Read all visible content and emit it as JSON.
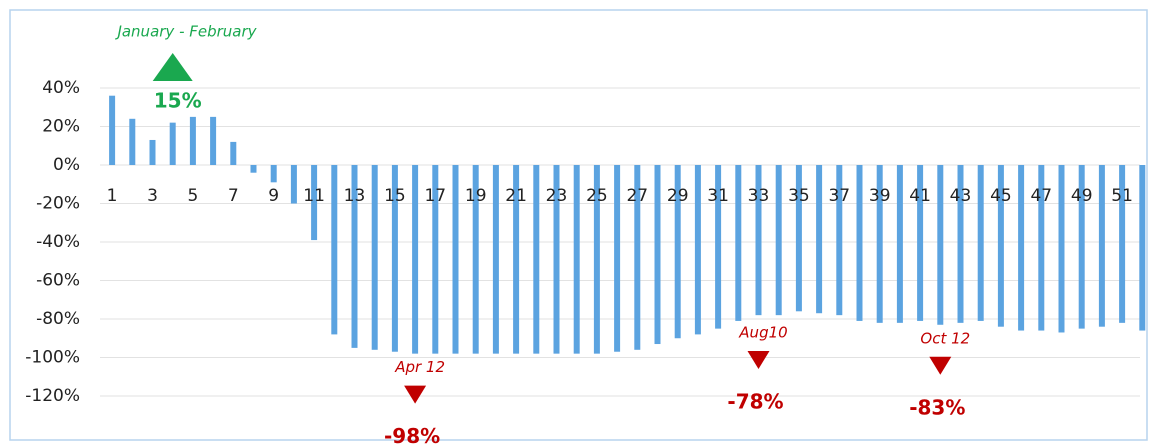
{
  "chart_data": {
    "type": "bar",
    "categories": [
      "1",
      null,
      "3",
      null,
      "5",
      null,
      "7",
      null,
      "9",
      null,
      "11",
      null,
      "13",
      null,
      "15",
      null,
      "17",
      null,
      "19",
      null,
      "21",
      null,
      "23",
      null,
      "25",
      null,
      "27",
      null,
      "29",
      null,
      "31",
      null,
      "33",
      null,
      "35",
      null,
      "37",
      null,
      "39",
      null,
      "41",
      null,
      "43",
      null,
      "45",
      null,
      "47",
      null,
      "49",
      null,
      "51",
      null
    ],
    "values": [
      36,
      24,
      13,
      22,
      25,
      25,
      12,
      -4,
      -9,
      -20,
      -39,
      -88,
      -95,
      -96,
      -97,
      -98,
      -98,
      -98,
      -98,
      -98,
      -98,
      -98,
      -98,
      -98,
      -98,
      -97,
      -96,
      -93,
      -90,
      -88,
      -85,
      -81,
      -78,
      -78,
      -76,
      -77,
      -78,
      -81,
      -82,
      -82,
      -81,
      -83,
      -82,
      -81,
      -84,
      -86,
      -86,
      -87,
      -85,
      -84,
      -82,
      -86
    ],
    "color": "#5ba3e0",
    "ylim": [
      -130,
      50
    ],
    "yticks": [
      {
        "value": 40,
        "label": "40%"
      },
      {
        "value": 20,
        "label": "20%"
      },
      {
        "value": 0,
        "label": "0%"
      },
      {
        "value": -20,
        "label": "-20%"
      },
      {
        "value": -40,
        "label": "-40%"
      },
      {
        "value": -60,
        "label": "-60%"
      },
      {
        "value": -80,
        "label": "-80%"
      },
      {
        "value": -100,
        "label": "-100%"
      },
      {
        "value": -120,
        "label": "-120%"
      }
    ],
    "grid": true,
    "annotations": [
      {
        "title": "January - February",
        "text": "15%",
        "direction": "up",
        "color": "#1aa84f"
      },
      {
        "title": "Apr 12",
        "text": "-98%",
        "direction": "down",
        "color": "#c00000"
      },
      {
        "title": "Aug10",
        "text": "-78%",
        "direction": "down",
        "color": "#c00000"
      },
      {
        "title": "Oct 12",
        "text": "-83%",
        "direction": "down",
        "color": "#c00000"
      }
    ]
  }
}
